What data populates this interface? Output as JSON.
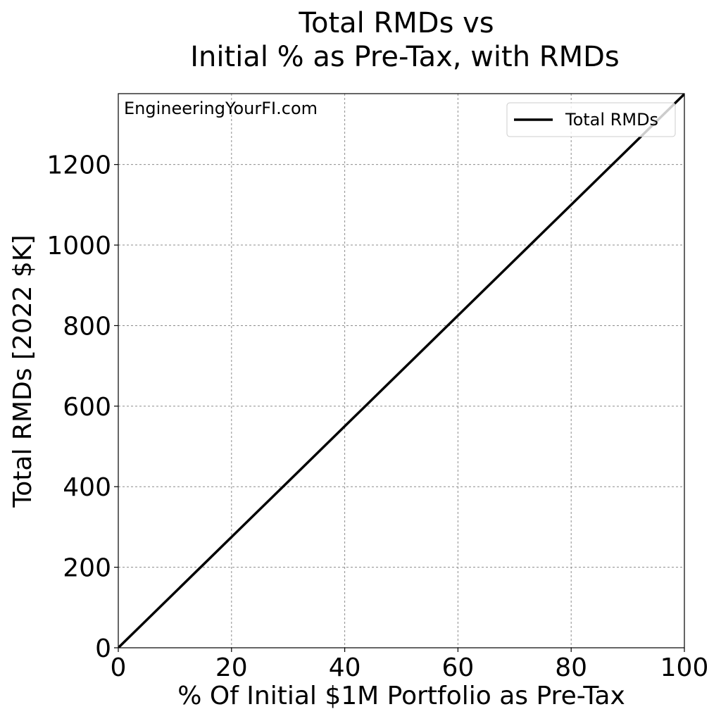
{
  "chart_data": {
    "type": "line",
    "title_line1": "Total RMDs vs",
    "title_line2": "Initial % as Pre-Tax, with RMDs",
    "xlabel": "% Of Initial $1M Portfolio as Pre-Tax",
    "ylabel": "Total RMDs [2022 $K]",
    "watermark": "EngineeringYourFI.com",
    "xlim": [
      0,
      100
    ],
    "ylim": [
      0,
      1376
    ],
    "xticks": [
      "0",
      "20",
      "40",
      "60",
      "80",
      "100"
    ],
    "yticks": [
      "0",
      "200",
      "400",
      "600",
      "800",
      "1000",
      "1200"
    ],
    "grid": true,
    "legend_position": "top-right",
    "series": [
      {
        "name": "Total RMDs",
        "color": "#000000",
        "x": [
          0,
          10,
          20,
          30,
          40,
          50,
          60,
          70,
          80,
          90,
          100
        ],
        "y": [
          0,
          137.5,
          275,
          412.5,
          550,
          687.5,
          825,
          962.5,
          1100,
          1237.5,
          1375
        ]
      }
    ]
  }
}
